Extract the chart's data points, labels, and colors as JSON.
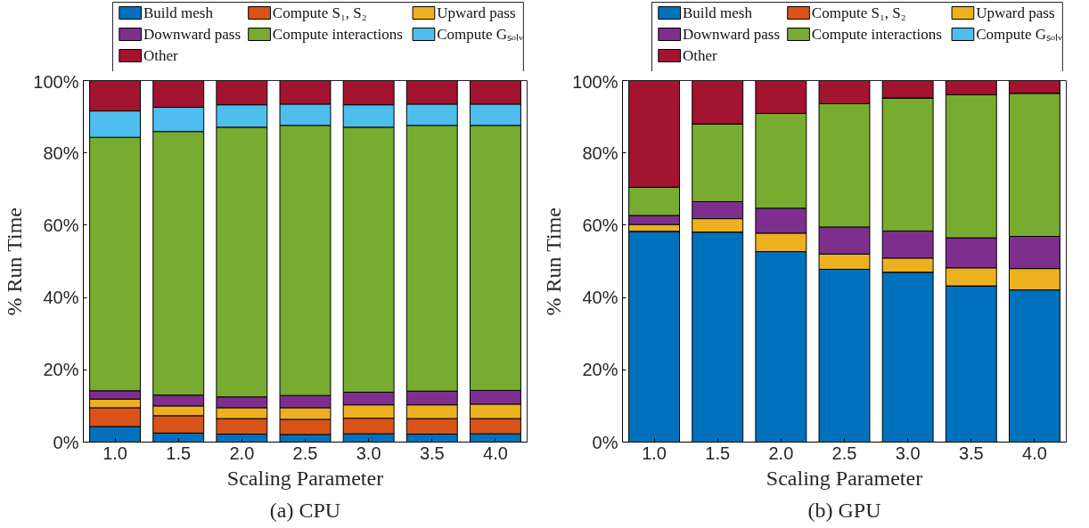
{
  "chart_data": [
    {
      "type": "bar",
      "stacked": true,
      "title": "(a) CPU",
      "xlabel": "Scaling Parameter",
      "ylabel": "% Run Time",
      "categories": [
        "1.0",
        "1.5",
        "2.0",
        "2.5",
        "3.0",
        "3.5",
        "4.0"
      ],
      "ylim": [
        0,
        100
      ],
      "yticks": [
        {
          "value": 0,
          "label": "0%"
        },
        {
          "value": 20,
          "label": "20%"
        },
        {
          "value": 40,
          "label": "40%"
        },
        {
          "value": 60,
          "label": "60%"
        },
        {
          "value": 80,
          "label": "80%"
        },
        {
          "value": 100,
          "label": "100%"
        }
      ],
      "grid": false,
      "legend": "top",
      "series": [
        {
          "name": "Build mesh",
          "color": "#0072bd",
          "values": [
            4.3,
            2.5,
            2.2,
            2.1,
            2.3,
            2.2,
            2.3
          ]
        },
        {
          "name": "Compute S₁, S₂",
          "color": "#d95319",
          "values": [
            5.2,
            4.8,
            4.3,
            4.2,
            4.3,
            4.3,
            4.2
          ]
        },
        {
          "name": "Upward pass",
          "color": "#edb120",
          "values": [
            2.4,
            2.7,
            3.0,
            3.2,
            3.7,
            3.8,
            4.0
          ]
        },
        {
          "name": "Downward pass",
          "color": "#7e2f8e",
          "values": [
            2.3,
            3.0,
            3.0,
            3.4,
            3.5,
            3.8,
            3.8
          ]
        },
        {
          "name": "Compute interactions",
          "color": "#77ac30",
          "values": [
            70.1,
            72.9,
            74.6,
            74.7,
            73.3,
            73.5,
            73.3
          ]
        },
        {
          "name": "Compute Gₛₒₗᵥ",
          "color": "#4dbeee",
          "values": [
            7.3,
            6.7,
            6.2,
            5.9,
            6.2,
            5.9,
            5.9
          ]
        },
        {
          "name": "Other",
          "color": "#a2142f",
          "values": [
            8.4,
            7.4,
            6.7,
            6.5,
            6.7,
            6.5,
            6.5
          ]
        }
      ]
    },
    {
      "type": "bar",
      "stacked": true,
      "title": "(b) GPU",
      "xlabel": "Scaling Parameter",
      "ylabel": "% Run Time",
      "categories": [
        "1.0",
        "1.5",
        "2.0",
        "2.5",
        "3.0",
        "3.5",
        "4.0"
      ],
      "ylim": [
        0,
        100
      ],
      "yticks": [
        {
          "value": 0,
          "label": "0%"
        },
        {
          "value": 20,
          "label": "20%"
        },
        {
          "value": 40,
          "label": "40%"
        },
        {
          "value": 60,
          "label": "60%"
        },
        {
          "value": 80,
          "label": "80%"
        },
        {
          "value": 100,
          "label": "100%"
        }
      ],
      "grid": false,
      "legend": "top",
      "series": [
        {
          "name": "Build mesh",
          "color": "#0072bd",
          "values": [
            58.3,
            58.1,
            52.7,
            47.8,
            47.0,
            43.2,
            42.1
          ]
        },
        {
          "name": "Compute S₁, S₂",
          "color": "#d95319",
          "values": [
            0,
            0,
            0,
            0,
            0,
            0,
            0
          ]
        },
        {
          "name": "Upward pass",
          "color": "#edb120",
          "values": [
            1.9,
            3.7,
            5.1,
            4.2,
            3.9,
            5.0,
            5.9
          ]
        },
        {
          "name": "Downward pass",
          "color": "#7e2f8e",
          "values": [
            2.5,
            4.7,
            6.9,
            7.5,
            7.5,
            8.3,
            8.9
          ]
        },
        {
          "name": "Compute interactions",
          "color": "#77ac30",
          "values": [
            7.8,
            21.5,
            26.2,
            34.1,
            36.8,
            39.6,
            39.6
          ]
        },
        {
          "name": "Compute Gₛₒₗᵥ",
          "color": "#4dbeee",
          "values": [
            0,
            0,
            0,
            0,
            0,
            0,
            0
          ]
        },
        {
          "name": "Other",
          "color": "#a2142f",
          "values": [
            29.5,
            12.0,
            9.1,
            6.4,
            4.8,
            3.9,
            3.5
          ]
        }
      ]
    }
  ]
}
